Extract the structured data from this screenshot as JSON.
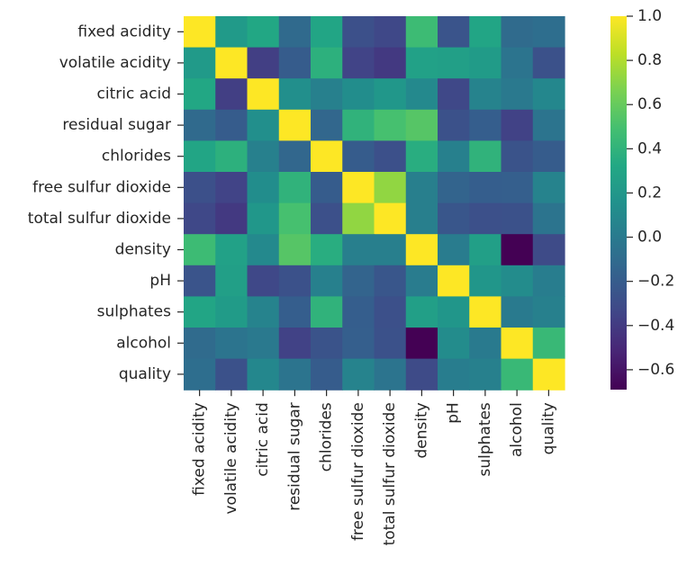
{
  "chart_data": {
    "type": "heatmap",
    "title": "",
    "xlabel": "",
    "ylabel": "",
    "row_labels": [
      "fixed acidity",
      "volatile acidity",
      "citric acid",
      "residual sugar",
      "chlorides",
      "free sulfur dioxide",
      "total sulfur dioxide",
      "density",
      "pH",
      "sulphates",
      "alcohol",
      "quality"
    ],
    "col_labels": [
      "fixed acidity",
      "volatile acidity",
      "citric acid",
      "residual sugar",
      "chlorides",
      "free sulfur dioxide",
      "total sulfur dioxide",
      "density",
      "pH",
      "sulphates",
      "alcohol",
      "quality"
    ],
    "values": [
      [
        1.0,
        0.22,
        0.32,
        -0.11,
        0.3,
        -0.28,
        -0.33,
        0.46,
        -0.25,
        0.3,
        -0.1,
        -0.08
      ],
      [
        0.22,
        1.0,
        -0.38,
        -0.2,
        0.38,
        -0.35,
        -0.41,
        0.27,
        0.26,
        0.23,
        -0.04,
        -0.27
      ],
      [
        0.32,
        -0.38,
        1.0,
        0.14,
        0.04,
        0.13,
        0.2,
        0.1,
        -0.33,
        0.06,
        -0.01,
        0.09
      ],
      [
        -0.11,
        -0.2,
        0.14,
        1.0,
        -0.13,
        0.4,
        0.5,
        0.55,
        -0.27,
        -0.19,
        -0.36,
        -0.04
      ],
      [
        0.3,
        0.38,
        0.04,
        -0.13,
        1.0,
        -0.2,
        -0.28,
        0.36,
        0.04,
        0.4,
        -0.26,
        -0.2
      ],
      [
        -0.28,
        -0.35,
        0.13,
        0.4,
        -0.2,
        1.0,
        0.72,
        0.03,
        -0.15,
        -0.19,
        -0.18,
        0.06
      ],
      [
        -0.33,
        -0.41,
        0.2,
        0.5,
        -0.28,
        0.72,
        1.0,
        0.03,
        -0.24,
        -0.28,
        -0.27,
        -0.04
      ],
      [
        0.46,
        0.27,
        0.1,
        0.55,
        0.36,
        0.03,
        0.03,
        1.0,
        0.01,
        0.26,
        -0.69,
        -0.31
      ],
      [
        -0.25,
        0.26,
        -0.33,
        -0.27,
        0.04,
        -0.15,
        -0.24,
        0.01,
        1.0,
        0.19,
        0.12,
        0.02
      ],
      [
        0.3,
        0.23,
        0.06,
        -0.19,
        0.4,
        -0.19,
        -0.28,
        0.26,
        0.19,
        1.0,
        -0.0,
        0.04
      ],
      [
        -0.1,
        -0.04,
        -0.01,
        -0.36,
        -0.26,
        -0.18,
        -0.27,
        -0.69,
        0.12,
        -0.0,
        1.0,
        0.44
      ],
      [
        -0.08,
        -0.27,
        0.09,
        -0.04,
        -0.2,
        0.06,
        -0.04,
        -0.31,
        0.02,
        0.04,
        0.44,
        1.0
      ]
    ],
    "colormap": "viridis",
    "vmin": -0.69,
    "vmax": 1.0,
    "colorbar_ticks": [
      -0.6,
      -0.4,
      -0.2,
      0.0,
      0.2,
      0.4,
      0.6,
      0.8,
      1.0
    ],
    "colorbar_tick_labels": [
      "−0.6",
      "−0.4",
      "−0.2",
      "0.0",
      "0.2",
      "0.4",
      "0.6",
      "0.8",
      "1.0"
    ]
  }
}
